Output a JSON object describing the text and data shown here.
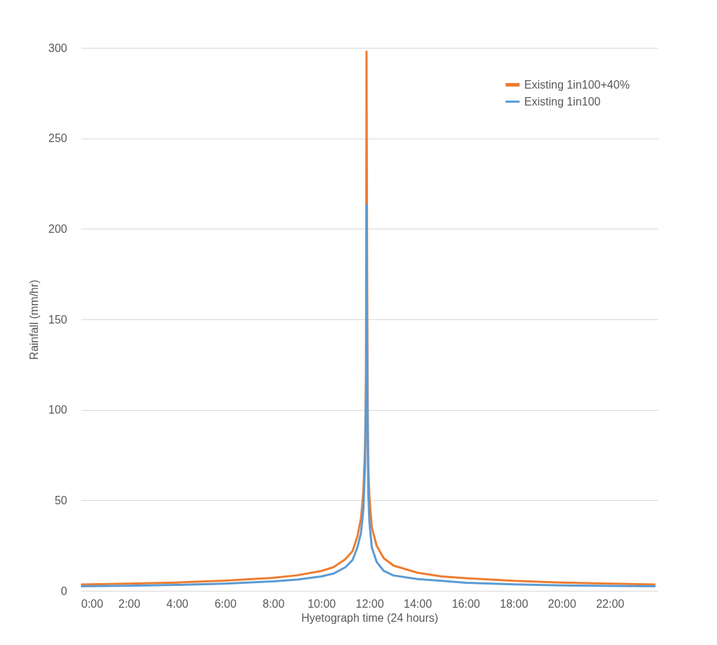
{
  "chart_data": {
    "type": "line",
    "xlabel": "Hyetograph time (24 hours)",
    "ylabel": "Rainfall (mm/hr)",
    "xlim": [
      0,
      24
    ],
    "xticks": [
      {
        "value": 0,
        "label": "0:00"
      },
      {
        "value": 2,
        "label": "2:00"
      },
      {
        "value": 4,
        "label": "4:00"
      },
      {
        "value": 6,
        "label": "6:00"
      },
      {
        "value": 8,
        "label": "8:00"
      },
      {
        "value": 10,
        "label": "10:00"
      },
      {
        "value": 12,
        "label": "12:00"
      },
      {
        "value": 14,
        "label": "14:00"
      },
      {
        "value": 16,
        "label": "16:00"
      },
      {
        "value": 18,
        "label": "18:00"
      },
      {
        "value": 20,
        "label": "20:00"
      },
      {
        "value": 22,
        "label": "22:00"
      }
    ],
    "ylim": [
      0,
      300
    ],
    "yticks": [
      0,
      50,
      100,
      150,
      200,
      250,
      300
    ],
    "grid": "y",
    "legend": "top right",
    "line_style": "solid",
    "x": [
      0,
      2,
      4,
      6,
      8,
      9,
      10,
      10.5,
      11,
      11.3,
      11.5,
      11.65,
      11.75,
      11.82,
      11.86,
      11.88,
      11.92,
      11.95,
      12,
      12.1,
      12.3,
      12.6,
      13,
      14,
      15,
      16,
      18,
      20,
      22,
      23.9
    ],
    "series": [
      {
        "name": "Existing 1in100+40%",
        "color": "#ed7d31",
        "values": [
          3.5,
          4,
          4.6,
          5.6,
          7.2,
          8.6,
          11,
          13,
          17.5,
          22,
          30,
          40,
          55,
          80,
          120,
          298,
          120,
          70,
          52,
          35,
          25,
          18,
          14,
          10,
          8,
          7,
          5.5,
          4.6,
          4,
          3.5
        ]
      },
      {
        "name": "Existing 1in100",
        "color": "#5b9bd5",
        "values": [
          2.5,
          2.8,
          3.3,
          4,
          5.2,
          6.2,
          8,
          9.5,
          13,
          17,
          24,
          32,
          45,
          70,
          110,
          213,
          100,
          55,
          38,
          24,
          16,
          11,
          8.5,
          6.5,
          5.5,
          4.5,
          3.6,
          3,
          2.7,
          2.5
        ]
      }
    ]
  }
}
